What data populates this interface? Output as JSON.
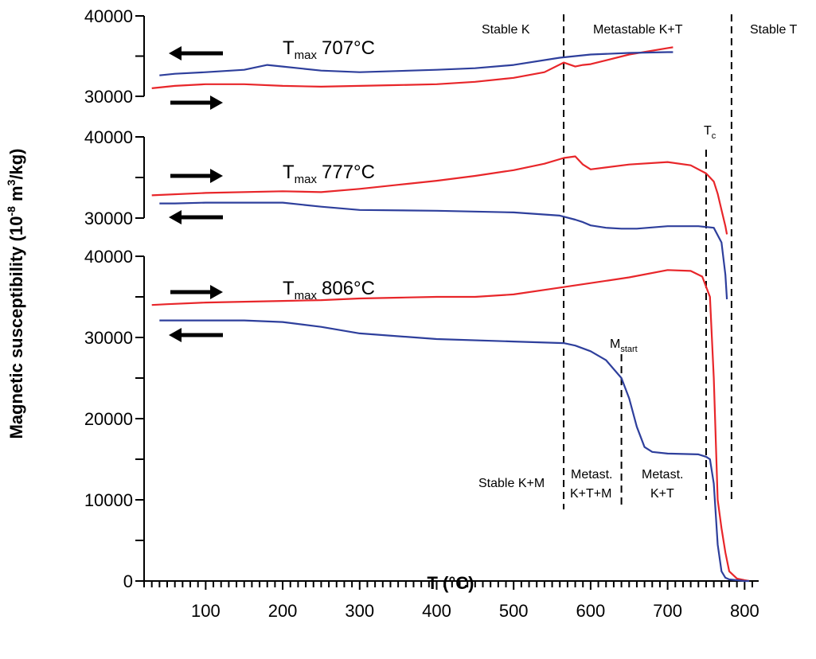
{
  "chart_data": {
    "type": "line",
    "x_axis": {
      "label_main": "T (",
      "label_unit": "°C",
      "label_close": ")",
      "range": [
        20,
        810
      ],
      "ticks": [
        "100",
        "200",
        "300",
        "400",
        "500",
        "600",
        "700",
        "800"
      ],
      "minor_step": 10
    },
    "y_axis": {
      "label_main": "Magnetic susceptibility (10",
      "label_exp": "-8",
      "label_unit": " m",
      "label_unit_exp": "3",
      "label_end": "/kg)"
    },
    "panels": [
      {
        "id": "707",
        "y_ticks": [
          "30000",
          "40000"
        ],
        "tmax_main": "T",
        "tmax_sub": "max",
        "tmax_value": "707°C",
        "series": [
          {
            "name": "heating",
            "color": "#e8262a",
            "x": [
              30,
              60,
              100,
              150,
              200,
              250,
              300,
              350,
              400,
              450,
              500,
              540,
              565,
              580,
              590,
              600,
              650,
              700,
              707
            ],
            "y": [
              31000,
              31300,
              31500,
              31500,
              31300,
              31200,
              31300,
              31400,
              31500,
              31800,
              32300,
              33000,
              34200,
              33700,
              33900,
              34000,
              35200,
              36000,
              36100
            ]
          },
          {
            "name": "cooling",
            "color": "#2e3f9c",
            "x": [
              707,
              700,
              650,
              600,
              580,
              560,
              500,
              450,
              400,
              300,
              250,
              200,
              180,
              150,
              100,
              60,
              40
            ],
            "y": [
              35500,
              35500,
              35400,
              35200,
              35000,
              34800,
              33900,
              33500,
              33300,
              33000,
              33200,
              33700,
              33900,
              33300,
              33000,
              32800,
              32600
            ]
          }
        ]
      },
      {
        "id": "777",
        "y_ticks": [
          "30000",
          "40000"
        ],
        "tmax_main": "T",
        "tmax_sub": "max",
        "tmax_value": "777°C",
        "series": [
          {
            "name": "heating",
            "color": "#e8262a",
            "x": [
              30,
              100,
              200,
              250,
              300,
              350,
              400,
              450,
              500,
              540,
              565,
              580,
              590,
              600,
              650,
              700,
              730,
              750,
              760,
              765,
              770,
              775,
              777
            ],
            "y": [
              32800,
              33100,
              33300,
              33200,
              33600,
              34100,
              34600,
              35200,
              35900,
              36700,
              37400,
              37600,
              36600,
              36000,
              36600,
              36900,
              36500,
              35500,
              34500,
              33000,
              31000,
              29000,
              28000
            ]
          },
          {
            "name": "cooling",
            "color": "#2e3f9c",
            "x": [
              777,
              775,
              770,
              760,
              740,
              700,
              660,
              640,
              620,
              600,
              590,
              580,
              560,
              500,
              400,
              300,
              250,
              200,
              150,
              100,
              60,
              40
            ],
            "y": [
              20000,
              23000,
              27000,
              28800,
              29000,
              29000,
              28700,
              28700,
              28800,
              29100,
              29500,
              29800,
              30300,
              30700,
              30900,
              31000,
              31400,
              31900,
              31900,
              31900,
              31800,
              31800
            ]
          }
        ]
      },
      {
        "id": "806",
        "y_ticks": [
          "0",
          "10000",
          "20000",
          "30000",
          "40000"
        ],
        "tmax_main": "T",
        "tmax_sub": "max",
        "tmax_value": "806°C",
        "series": [
          {
            "name": "heating",
            "color": "#e8262a",
            "x": [
              30,
              50,
              100,
              150,
              200,
              250,
              300,
              350,
              400,
              450,
              500,
              550,
              600,
              650,
              700,
              730,
              745,
              755,
              760,
              765,
              770,
              775,
              780,
              790,
              800,
              806
            ],
            "y": [
              34000,
              34100,
              34300,
              34400,
              34500,
              34600,
              34800,
              34900,
              35000,
              35000,
              35300,
              36000,
              36700,
              37400,
              38300,
              38200,
              37500,
              35000,
              25000,
              10000,
              6500,
              3500,
              1200,
              300,
              100,
              0
            ]
          },
          {
            "name": "cooling",
            "color": "#2e3f9c",
            "x": [
              806,
              800,
              790,
              780,
              775,
              770,
              765,
              760,
              755,
              750,
              740,
              700,
              680,
              670,
              660,
              650,
              640,
              620,
              600,
              580,
              565,
              500,
              400,
              300,
              250,
              200,
              150,
              100,
              60,
              40
            ],
            "y": [
              0,
              0,
              100,
              200,
              400,
              1200,
              4500,
              12000,
              15000,
              15300,
              15600,
              15700,
              15900,
              16500,
              19000,
              22500,
              25000,
              27200,
              28300,
              29000,
              29300,
              29500,
              29800,
              30500,
              31300,
              31900,
              32100,
              32100,
              32100,
              32100
            ]
          }
        ]
      }
    ],
    "annotations": {
      "stable_k": "Stable K",
      "metastable_kt": "Metastable K+T",
      "stable_t": "Stable T",
      "tc_main": "T",
      "tc_sub": "c",
      "mstart_main": "M",
      "mstart_sub": "start",
      "stable_km": "Stable K+M",
      "metast_ktm_1": "Metast.",
      "metast_ktm_2": "K+T+M",
      "metast_kt_1": "Metast.",
      "metast_kt_2": "K+T"
    },
    "vlines_x": [
      565,
      640,
      750,
      783
    ]
  }
}
